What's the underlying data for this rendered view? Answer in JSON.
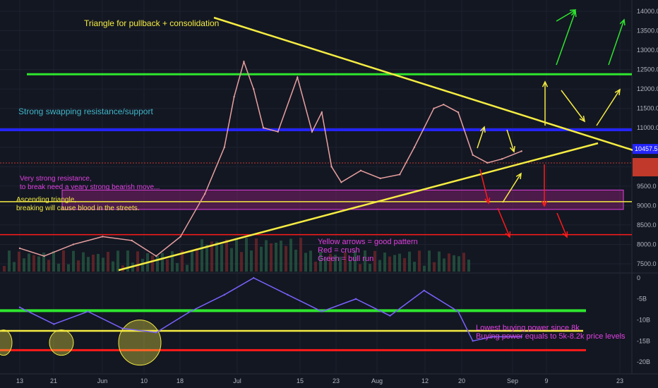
{
  "chart_data": {
    "type": "line",
    "title": "",
    "price_axis": {
      "range": [
        7300,
        14200
      ],
      "ticks": [
        "7500.0",
        "8000.0",
        "8500.0",
        "9000.0",
        "9500.0",
        "10000.0",
        "10500.0",
        "11000.0",
        "11500.0",
        "12000.0",
        "12500.0",
        "13000.0",
        "13500.0",
        "14000.0"
      ],
      "current_price_label": "10457.5",
      "current_price": 10457.5
    },
    "indicator_axis": {
      "range": [
        -22,
        1
      ],
      "ticks": [
        "0",
        "-5B",
        "-10B",
        "-15B",
        "-20B"
      ]
    },
    "time_axis": {
      "ticks": [
        "13",
        "21",
        "Jun",
        "10",
        "18",
        "Jul",
        "15",
        "23",
        "Aug",
        "12",
        "20",
        "Sep",
        "9",
        "23"
      ]
    },
    "price_series": {
      "name": "",
      "x": [
        "May 13",
        "May 18",
        "May 24",
        "May 30",
        "Jun 5",
        "Jun 10",
        "Jun 15",
        "Jun 20",
        "Jun 24",
        "Jun 26",
        "Jun 28",
        "Jun 30",
        "Jul 2",
        "Jul 5",
        "Jul 9",
        "Jul 12",
        "Jul 14",
        "Jul 16",
        "Jul 18",
        "Jul 22",
        "Jul 26",
        "Jul 30",
        "Aug 2",
        "Aug 6",
        "Aug 8",
        "Aug 11",
        "Aug 14",
        "Aug 17",
        "Aug 20",
        "Aug 24"
      ],
      "y": [
        7900,
        7700,
        8000,
        8200,
        8100,
        7700,
        8200,
        9300,
        10500,
        11800,
        12700,
        12000,
        11000,
        10900,
        12300,
        10900,
        11400,
        10000,
        9600,
        9900,
        9700,
        9800,
        10500,
        11500,
        11600,
        11400,
        10300,
        10100,
        10200,
        10400
      ]
    },
    "indicator_series": {
      "name": "",
      "x": [
        "May 13",
        "May 20",
        "May 27",
        "Jun 3",
        "Jun 10",
        "Jun 17",
        "Jun 24",
        "Jun 30",
        "Jul 7",
        "Jul 14",
        "Jul 21",
        "Jul 28",
        "Aug 4",
        "Aug 11",
        "Aug 14",
        "Aug 18",
        "Aug 24"
      ],
      "y": [
        -7,
        -11,
        -8,
        -12,
        -13,
        -8,
        -4,
        0,
        -4,
        -8,
        -5,
        -9,
        -3,
        -8,
        -15,
        -14,
        -14
      ]
    },
    "annotations": {
      "triangle": "Triangle for pullback + consolidation",
      "swap": "Strong swapping resistance/support",
      "resistance": "Very strong resistance,\nto break need a veary strong bearish move...",
      "ascending": "Ascending triangle,\nbreaking will cause blood in the streets.",
      "legend": "Yellow arrows = good pattern\nRed = crush\nGreen = bull run",
      "buying": "Lowest buying power since 8k\nBuying power equals to 5k-8.2k price levels"
    },
    "levels": {
      "green": 12380,
      "blue": 10950,
      "red": 8250,
      "yellow_horizontal": 9100,
      "zone": [
        8900,
        9400
      ]
    },
    "colors": {
      "bg": "#131722",
      "yellow": "#f5ec42",
      "green": "#2ee52e",
      "blue": "#2424ff",
      "red": "#ff1a1a",
      "magenta": "#e040e0",
      "cyan": "#3fb6c9",
      "purple": "#7a62ff"
    }
  }
}
